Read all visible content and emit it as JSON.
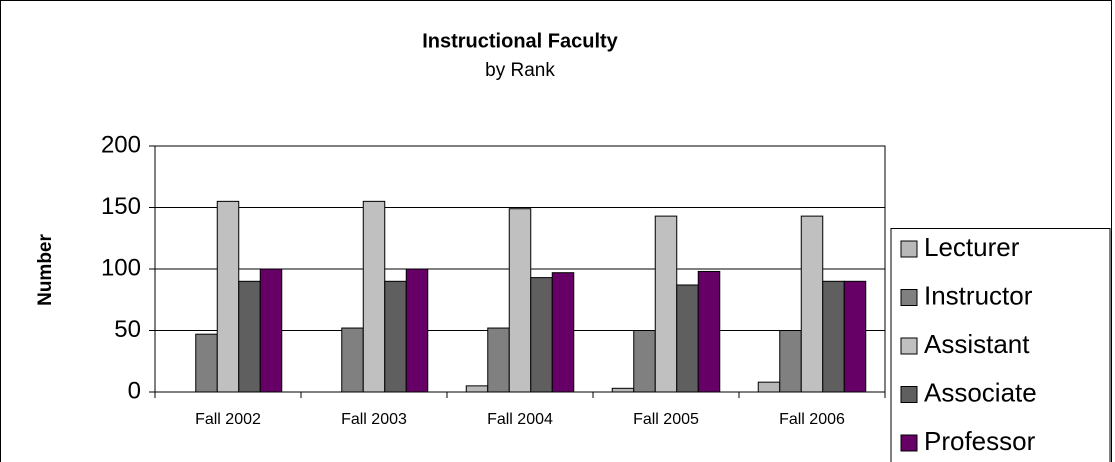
{
  "chart_data": {
    "type": "bar",
    "title": "Instructional Faculty",
    "subtitle": "by Rank",
    "y_label": "Number",
    "categories": [
      "Fall 2002",
      "Fall 2003",
      "Fall 2004",
      "Fall 2005",
      "Fall 2006"
    ],
    "series": [
      {
        "name": "Lecturer",
        "color": "#b8b8b8",
        "values": [
          0,
          0,
          5,
          3,
          8
        ]
      },
      {
        "name": "Instructor",
        "color": "#808080",
        "values": [
          47,
          52,
          52,
          50,
          50
        ]
      },
      {
        "name": "Assistant",
        "color": "#c0c0c0",
        "values": [
          155,
          155,
          149,
          143,
          143
        ]
      },
      {
        "name": "Associate",
        "color": "#5f5f5f",
        "values": [
          90,
          90,
          93,
          87,
          90
        ]
      },
      {
        "name": "Professor",
        "color": "#660066",
        "values": [
          100,
          100,
          97,
          98,
          90
        ]
      }
    ],
    "ylim": [
      0,
      200
    ],
    "yticks": [
      0,
      50,
      100,
      150,
      200
    ],
    "grid": true
  }
}
